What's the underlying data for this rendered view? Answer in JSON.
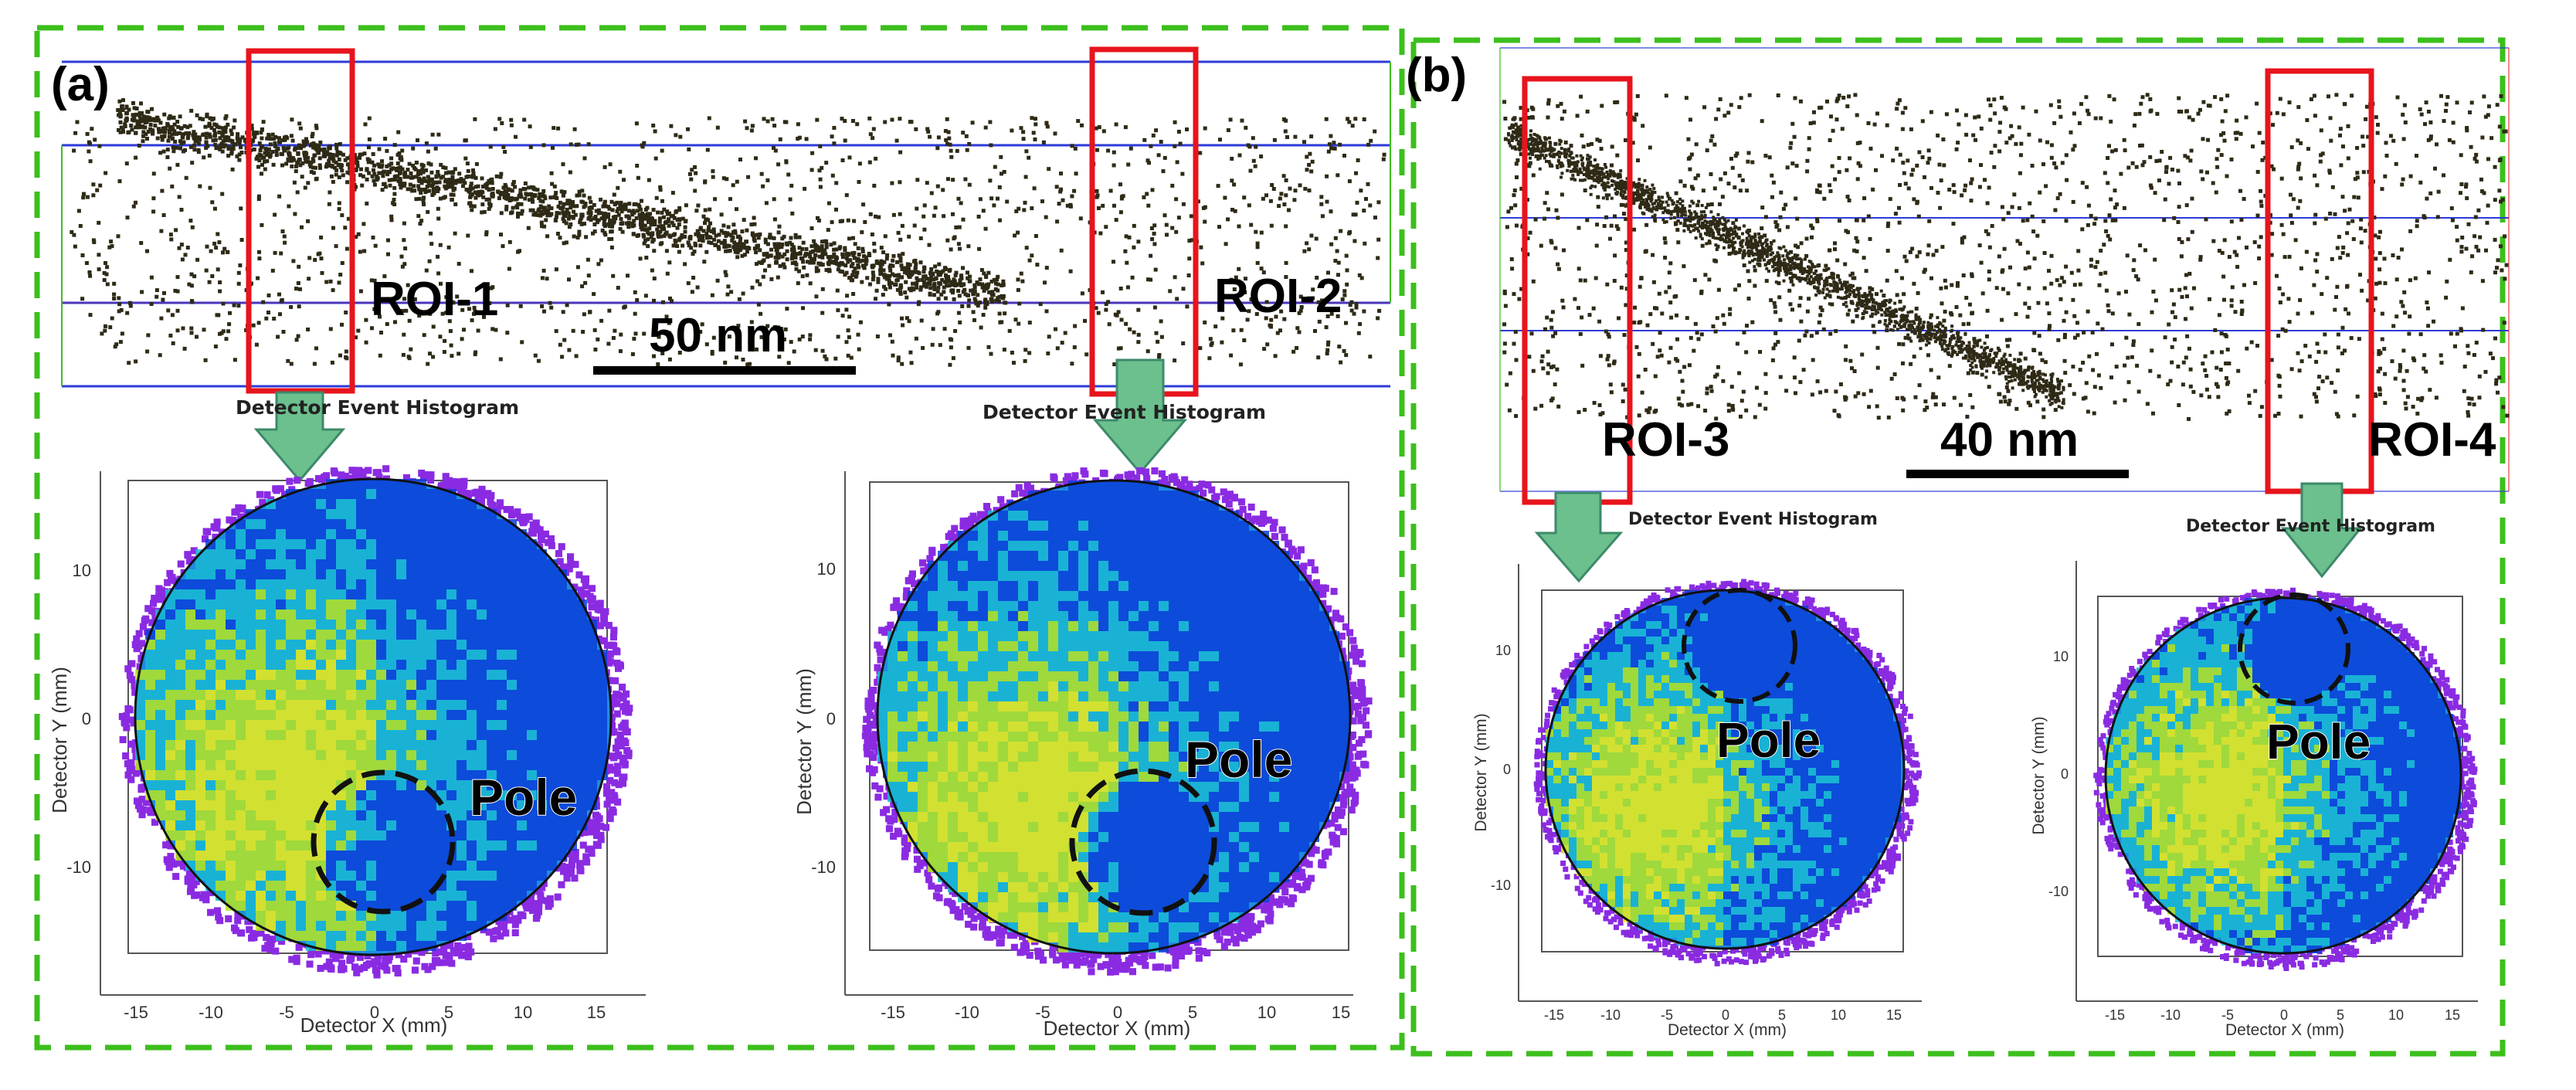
{
  "panels": [
    {
      "id": "a",
      "label": "(a)",
      "scale_bar": "50 nm",
      "rois": [
        "ROI-1",
        "ROI-2"
      ],
      "histograms": [
        {
          "title": "Detector Event Histogram",
          "xlabel": "Detector X (mm)",
          "ylabel": "Detector Y (mm)",
          "xticks": [
            "-15",
            "-10",
            "-5",
            "0",
            "5",
            "10",
            "15"
          ],
          "yticks": [
            "10",
            "0",
            "-10"
          ],
          "pole": "Pole"
        },
        {
          "title": "Detector Event Histogram",
          "xlabel": "Detector X (mm)",
          "ylabel": "Detector Y (mm)",
          "xticks": [
            "-15",
            "-10",
            "-5",
            "0",
            "5",
            "10",
            "15"
          ],
          "yticks": [
            "10",
            "0",
            "-10"
          ],
          "pole": "Pole"
        }
      ]
    },
    {
      "id": "b",
      "label": "(b)",
      "scale_bar": "40 nm",
      "rois": [
        "ROI-3",
        "ROI-4"
      ],
      "histograms": [
        {
          "title": "Detector Event Histogram",
          "xlabel": "Detector X (mm)",
          "ylabel": "Detector Y (mm)",
          "xticks": [
            "-15",
            "-10",
            "-5",
            "0",
            "5",
            "10",
            "15"
          ],
          "yticks": [
            "10",
            "0",
            "-10"
          ],
          "pole": "Pole"
        },
        {
          "title": "Detector Event Histogram",
          "xlabel": "Detector X (mm)",
          "ylabel": "Detector Y (mm)",
          "xticks": [
            "-15",
            "-10",
            "-5",
            "0",
            "5",
            "10",
            "15"
          ],
          "yticks": [
            "10",
            "0",
            "-10"
          ],
          "pole": "Pole"
        }
      ]
    }
  ],
  "colors": {
    "panel_border": "#3cbf1c",
    "roi_box": "#e8141c",
    "arrow_fill": "#6cc08e",
    "arrow_stroke": "#3c8a6a",
    "box_edge": "#2d3bd8",
    "atom": "#2e2a16",
    "pole_circle": "#111111",
    "hist_cold": "#0a3fd8",
    "hist_mid": "#19b9d2",
    "hist_warm": "#b6e61e",
    "hist_hot": "#f2ee12",
    "hist_halo": "#8a2be2"
  }
}
